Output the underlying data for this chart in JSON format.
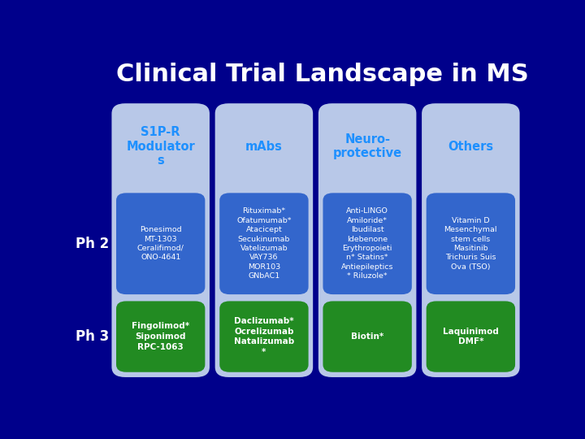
{
  "title": "Clinical Trial Landscape in MS",
  "title_color": "#FFFFFF",
  "title_fontsize": 22,
  "background_color": "#00008B",
  "columns": [
    {
      "header": "S1P-R\nModulator\ns",
      "header_color": "#1E90FF",
      "col_bg": "#B8C8E8",
      "ph2_text": "Ponesimod\nMT-1303\nCeralifimod/\nONO-4641",
      "ph2_bg": "#3366CC",
      "ph3_text": "Fingolimod*\nSiponimod\nRPC-1063",
      "ph3_bg": "#228B22"
    },
    {
      "header": "mAbs",
      "header_color": "#1E90FF",
      "col_bg": "#B8C8E8",
      "ph2_text": "Rituximab*\nOfatumumab*\nAtacicept\nSecukinumab\nVatelizumab\nVAY736\nMOR103\nGNbAC1",
      "ph2_bg": "#3366CC",
      "ph3_text": "Daclizumab*\nOcrelizumab\nNatalizumab\n*",
      "ph3_bg": "#228B22"
    },
    {
      "header": "Neuro-\nprotective",
      "header_color": "#1E90FF",
      "col_bg": "#B8C8E8",
      "ph2_text": "Anti-LINGO\nAmiloride*\nIbudilast\nIdebenone\nErythropoieti\nn* Statins*\nAntiepileptics\n* Riluzole*",
      "ph2_bg": "#3366CC",
      "ph3_text": "Biotin*",
      "ph3_bg": "#228B22"
    },
    {
      "header": "Others",
      "header_color": "#1E90FF",
      "col_bg": "#B8C8E8",
      "ph2_text": "Vitamin D\nMesenchymal\nstem cells\nMasitinib\nTrichuris Suis\nOva (TSO)",
      "ph2_bg": "#3366CC",
      "ph3_text": "Laquinimod\nDMF*",
      "ph3_bg": "#228B22"
    }
  ],
  "ph2_label": "Ph 2",
  "ph3_label": "Ph 3",
  "label_color": "#FFFFFF",
  "label_fontsize": 12
}
